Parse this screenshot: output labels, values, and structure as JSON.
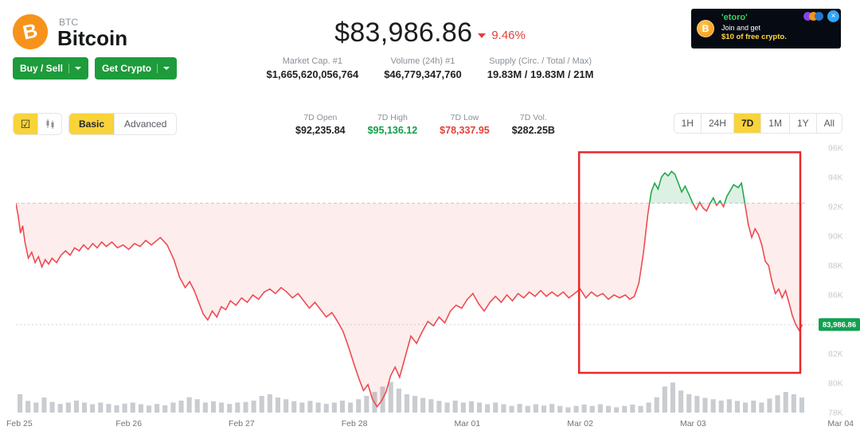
{
  "colors": {
    "button_green": "#1e9b3b",
    "accent_yellow": "#f8d33a",
    "up_green": "#0f9e49",
    "down_red": "#e2403b",
    "line_red": "#ed4b52",
    "line_green": "#25a750",
    "bar_gray": "#c9ccd0",
    "baseline_gray": "#c8cbce",
    "price_label_bg": "#12a050",
    "box_red": "#e8282b"
  },
  "icons": {
    "checkbox": "☑",
    "close": "×",
    "coin_b": "B"
  },
  "header": {
    "symbol": "BTC",
    "name": "Bitcoin",
    "buy_sell_label": "Buy / Sell",
    "get_crypto_label": "Get Crypto",
    "price": "$83,986.86",
    "change_pct": "9.46%",
    "stats": [
      {
        "label": "Market Cap. #1",
        "value": "$1,665,620,056,764"
      },
      {
        "label": "Volume (24h) #1",
        "value": "$46,779,347,760"
      },
      {
        "label": "Supply (Circ. / Total / Max)",
        "value": "19.83M / 19.83M / 21M"
      }
    ],
    "ad": {
      "brand": "'etoro'",
      "line1": "Join and get",
      "line2": "$10 of free crypto."
    }
  },
  "toolbar": {
    "tabs": [
      {
        "label": "Basic"
      },
      {
        "label": "Advanced"
      }
    ],
    "stats7d": {
      "items": [
        {
          "label": "7D Open",
          "value": "$92,235.84"
        },
        {
          "label": "7D High",
          "value": "$95,136.12"
        },
        {
          "label": "7D Low",
          "value": "$78,337.95"
        },
        {
          "label": "7D Vol.",
          "value": "$282.25B"
        }
      ]
    },
    "ranges": [
      "1H",
      "24H",
      "7D",
      "1M",
      "1Y",
      "All"
    ],
    "active_range": "7D"
  },
  "chart_data": {
    "type": "line",
    "coin": "BTC",
    "range": "7D",
    "x_labels": [
      "Feb 25",
      "Feb 26",
      "Feb 27",
      "Feb 28",
      "Mar 01",
      "Mar 02",
      "Mar 03",
      "Mar 04"
    ],
    "y_ticks": [
      96,
      94,
      92,
      90,
      88,
      86,
      84,
      82,
      80,
      78
    ],
    "y_tick_suffix": "K",
    "y_unit": "thousand USD",
    "ylim": [
      78,
      96
    ],
    "open_price_k": 92.23584,
    "current_price_k": 83.98686,
    "current_price_label": "83,986.86",
    "legend": "off",
    "grid": "dashed reference lines at open and current price only",
    "series": [
      {
        "name": "BTC price (USD, thousands)",
        "points": [
          [
            0,
            92.2
          ],
          [
            0.02,
            91.4
          ],
          [
            0.04,
            90.2
          ],
          [
            0.06,
            90.7
          ],
          [
            0.08,
            89.6
          ],
          [
            0.11,
            88.5
          ],
          [
            0.14,
            88.9
          ],
          [
            0.17,
            88.2
          ],
          [
            0.2,
            88.6
          ],
          [
            0.23,
            87.9
          ],
          [
            0.26,
            88.4
          ],
          [
            0.29,
            88.1
          ],
          [
            0.32,
            88.5
          ],
          [
            0.36,
            88.2
          ],
          [
            0.4,
            88.7
          ],
          [
            0.44,
            89
          ],
          [
            0.48,
            88.7
          ],
          [
            0.52,
            89.2
          ],
          [
            0.56,
            89
          ],
          [
            0.6,
            89.4
          ],
          [
            0.64,
            89.1
          ],
          [
            0.68,
            89.5
          ],
          [
            0.72,
            89.2
          ],
          [
            0.76,
            89.6
          ],
          [
            0.8,
            89.3
          ],
          [
            0.85,
            89.6
          ],
          [
            0.9,
            89.2
          ],
          [
            0.95,
            89.4
          ],
          [
            1,
            89.1
          ],
          [
            1.05,
            89.5
          ],
          [
            1.1,
            89.3
          ],
          [
            1.15,
            89.7
          ],
          [
            1.2,
            89.4
          ],
          [
            1.28,
            89.9
          ],
          [
            1.34,
            89.4
          ],
          [
            1.4,
            88.4
          ],
          [
            1.45,
            87.2
          ],
          [
            1.5,
            86.5
          ],
          [
            1.54,
            86.9
          ],
          [
            1.58,
            86.3
          ],
          [
            1.62,
            85.5
          ],
          [
            1.66,
            84.7
          ],
          [
            1.7,
            84.3
          ],
          [
            1.74,
            84.9
          ],
          [
            1.78,
            84.5
          ],
          [
            1.82,
            85.2
          ],
          [
            1.86,
            85
          ],
          [
            1.9,
            85.6
          ],
          [
            1.95,
            85.3
          ],
          [
            2,
            85.8
          ],
          [
            2.05,
            85.5
          ],
          [
            2.1,
            86
          ],
          [
            2.15,
            85.7
          ],
          [
            2.2,
            86.2
          ],
          [
            2.25,
            86.4
          ],
          [
            2.3,
            86.1
          ],
          [
            2.35,
            86.5
          ],
          [
            2.4,
            86.2
          ],
          [
            2.45,
            85.8
          ],
          [
            2.5,
            86.1
          ],
          [
            2.55,
            85.6
          ],
          [
            2.6,
            85.1
          ],
          [
            2.65,
            85.5
          ],
          [
            2.7,
            85
          ],
          [
            2.75,
            84.5
          ],
          [
            2.8,
            84.8
          ],
          [
            2.85,
            84.2
          ],
          [
            2.9,
            83.5
          ],
          [
            2.95,
            82.4
          ],
          [
            3,
            81.2
          ],
          [
            3.04,
            80.3
          ],
          [
            3.08,
            79.5
          ],
          [
            3.12,
            79.9
          ],
          [
            3.16,
            78.9
          ],
          [
            3.2,
            78.4
          ],
          [
            3.24,
            78.8
          ],
          [
            3.28,
            79.4
          ],
          [
            3.32,
            80.5
          ],
          [
            3.36,
            81.1
          ],
          [
            3.4,
            80.4
          ],
          [
            3.45,
            81.8
          ],
          [
            3.5,
            83.2
          ],
          [
            3.55,
            82.7
          ],
          [
            3.6,
            83.5
          ],
          [
            3.65,
            84.2
          ],
          [
            3.7,
            83.9
          ],
          [
            3.75,
            84.5
          ],
          [
            3.8,
            84.1
          ],
          [
            3.85,
            84.9
          ],
          [
            3.9,
            85.3
          ],
          [
            3.95,
            85.1
          ],
          [
            4,
            85.7
          ],
          [
            4.05,
            86.1
          ],
          [
            4.1,
            85.4
          ],
          [
            4.15,
            84.9
          ],
          [
            4.2,
            85.5
          ],
          [
            4.25,
            85.9
          ],
          [
            4.3,
            85.5
          ],
          [
            4.35,
            86
          ],
          [
            4.4,
            85.6
          ],
          [
            4.45,
            86.1
          ],
          [
            4.5,
            85.8
          ],
          [
            4.55,
            86.2
          ],
          [
            4.6,
            85.9
          ],
          [
            4.65,
            86.3
          ],
          [
            4.7,
            85.9
          ],
          [
            4.75,
            86.2
          ],
          [
            4.8,
            85.9
          ],
          [
            4.85,
            86.2
          ],
          [
            4.9,
            85.8
          ],
          [
            4.95,
            86.1
          ],
          [
            5,
            86.4
          ],
          [
            5.05,
            85.8
          ],
          [
            5.1,
            86.2
          ],
          [
            5.15,
            85.9
          ],
          [
            5.2,
            86.1
          ],
          [
            5.25,
            85.7
          ],
          [
            5.3,
            86
          ],
          [
            5.35,
            85.8
          ],
          [
            5.4,
            86
          ],
          [
            5.44,
            85.7
          ],
          [
            5.48,
            85.9
          ],
          [
            5.52,
            86.8
          ],
          [
            5.56,
            88.8
          ],
          [
            5.6,
            91.5
          ],
          [
            5.63,
            93
          ],
          [
            5.66,
            93.6
          ],
          [
            5.69,
            93.2
          ],
          [
            5.72,
            94
          ],
          [
            5.75,
            94.3
          ],
          [
            5.78,
            94.1
          ],
          [
            5.81,
            94.4
          ],
          [
            5.84,
            94.2
          ],
          [
            5.87,
            93.6
          ],
          [
            5.9,
            93
          ],
          [
            5.93,
            93.4
          ],
          [
            5.96,
            92.9
          ],
          [
            6,
            92.2
          ],
          [
            6.03,
            91.8
          ],
          [
            6.06,
            92.3
          ],
          [
            6.09,
            91.9
          ],
          [
            6.12,
            91.7
          ],
          [
            6.15,
            92.2
          ],
          [
            6.18,
            92.6
          ],
          [
            6.21,
            92.1
          ],
          [
            6.24,
            92.4
          ],
          [
            6.27,
            92
          ],
          [
            6.3,
            92.7
          ],
          [
            6.33,
            93.1
          ],
          [
            6.36,
            93.5
          ],
          [
            6.4,
            93.3
          ],
          [
            6.43,
            93.6
          ],
          [
            6.46,
            92.2
          ],
          [
            6.49,
            90.8
          ],
          [
            6.52,
            89.9
          ],
          [
            6.55,
            90.5
          ],
          [
            6.58,
            90.1
          ],
          [
            6.61,
            89.4
          ],
          [
            6.64,
            88.3
          ],
          [
            6.67,
            88
          ],
          [
            6.7,
            86.9
          ],
          [
            6.73,
            86.1
          ],
          [
            6.76,
            86.4
          ],
          [
            6.79,
            85.8
          ],
          [
            6.82,
            86.3
          ],
          [
            6.85,
            85.5
          ],
          [
            6.88,
            84.6
          ],
          [
            6.91,
            84
          ],
          [
            6.94,
            83.6
          ],
          [
            6.97,
            83.99
          ]
        ]
      }
    ],
    "volume_bars": [
      0.55,
      0.35,
      0.3,
      0.45,
      0.32,
      0.26,
      0.3,
      0.36,
      0.3,
      0.25,
      0.3,
      0.26,
      0.22,
      0.27,
      0.3,
      0.25,
      0.21,
      0.26,
      0.22,
      0.3,
      0.36,
      0.46,
      0.4,
      0.3,
      0.34,
      0.3,
      0.26,
      0.3,
      0.32,
      0.36,
      0.5,
      0.55,
      0.45,
      0.4,
      0.34,
      0.3,
      0.35,
      0.3,
      0.26,
      0.3,
      0.36,
      0.3,
      0.4,
      0.5,
      0.62,
      0.78,
      0.92,
      0.72,
      0.55,
      0.5,
      0.44,
      0.4,
      0.35,
      0.3,
      0.36,
      0.3,
      0.34,
      0.3,
      0.25,
      0.3,
      0.25,
      0.2,
      0.26,
      0.2,
      0.25,
      0.21,
      0.26,
      0.2,
      0.16,
      0.2,
      0.24,
      0.2,
      0.25,
      0.2,
      0.16,
      0.2,
      0.24,
      0.2,
      0.3,
      0.46,
      0.78,
      0.9,
      0.66,
      0.55,
      0.5,
      0.44,
      0.4,
      0.36,
      0.4,
      0.35,
      0.3,
      0.36,
      0.3,
      0.42,
      0.52,
      0.62,
      0.55,
      0.45
    ],
    "annotation_box": {
      "day_start": 4.99,
      "day_end": 6.95,
      "price_top_k": 95.7,
      "price_bottom_k": 80.7,
      "color": "#e8282b"
    }
  }
}
